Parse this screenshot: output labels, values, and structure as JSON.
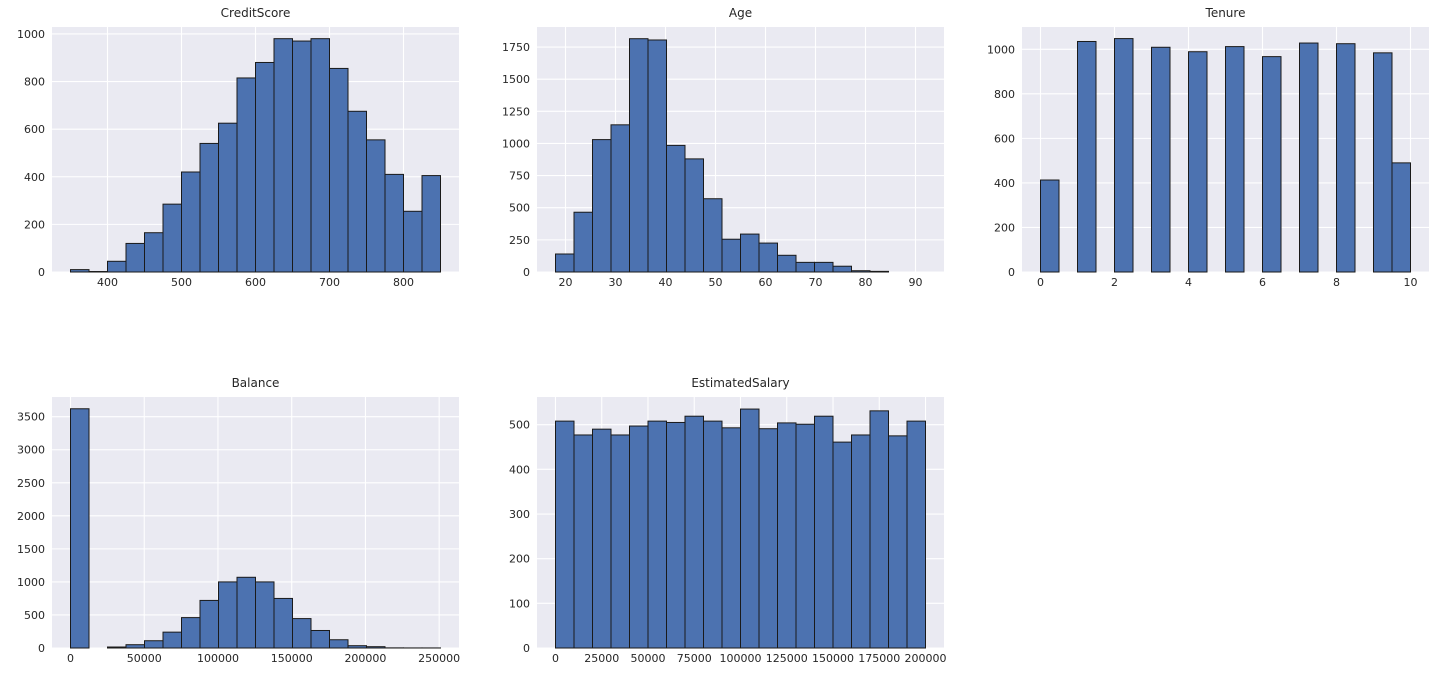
{
  "figure": {
    "background": "#ffffff",
    "axes_background": "#eaeaf2",
    "grid_color": "#ffffff",
    "bar_fill": "#4c72b0",
    "bar_edge": "#1a1a1a",
    "text_color": "#262626"
  },
  "chart_data": [
    {
      "type": "bar",
      "chart_kind": "histogram",
      "title": "CreditScore",
      "xlabel": "",
      "ylabel": "",
      "bin_start": 350,
      "bin_width": 25,
      "values": [
        10,
        2,
        45,
        120,
        165,
        285,
        420,
        540,
        625,
        815,
        880,
        980,
        970,
        980,
        855,
        675,
        555,
        410,
        255,
        405
      ],
      "xlim": [
        325,
        875
      ],
      "ylim": [
        0,
        1029
      ],
      "xticks": [
        400,
        500,
        600,
        700,
        800
      ],
      "yticks": [
        0,
        200,
        400,
        600,
        800,
        1000
      ],
      "grid": true
    },
    {
      "type": "bar",
      "chart_kind": "histogram",
      "title": "Age",
      "xlabel": "",
      "ylabel": "",
      "bin_start": 18,
      "bin_width": 3.7,
      "values": [
        140,
        465,
        1030,
        1145,
        1815,
        1805,
        985,
        880,
        570,
        255,
        295,
        225,
        130,
        75,
        75,
        45,
        10,
        5,
        0,
        0
      ],
      "xlim": [
        14.3,
        95.7
      ],
      "ylim": [
        0,
        1906
      ],
      "xticks": [
        20,
        30,
        40,
        50,
        60,
        70,
        80,
        90
      ],
      "yticks": [
        0,
        250,
        500,
        750,
        1000,
        1250,
        1500,
        1750
      ],
      "grid": true
    },
    {
      "type": "bar",
      "chart_kind": "histogram",
      "title": "Tenure",
      "xlabel": "",
      "ylabel": "",
      "bin_start": 0,
      "bin_width": 0.5,
      "values": [
        413,
        0,
        1035,
        0,
        1048,
        0,
        1009,
        0,
        989,
        0,
        1012,
        0,
        967,
        0,
        1028,
        0,
        1025,
        0,
        984,
        490
      ],
      "xlim": [
        -0.5,
        10.5
      ],
      "ylim": [
        0,
        1100
      ],
      "xticks": [
        0,
        2,
        4,
        6,
        8,
        10
      ],
      "yticks": [
        0,
        200,
        400,
        600,
        800,
        1000
      ],
      "grid": true
    },
    {
      "type": "bar",
      "chart_kind": "histogram",
      "title": "Balance",
      "xlabel": "",
      "ylabel": "",
      "bin_start": 0,
      "bin_width": 12545,
      "values": [
        3620,
        0,
        15,
        50,
        110,
        240,
        460,
        720,
        1000,
        1070,
        1000,
        750,
        445,
        265,
        125,
        35,
        20,
        2,
        1,
        1
      ],
      "xlim": [
        -12545,
        263443
      ],
      "ylim": [
        0,
        3798
      ],
      "xticks": [
        0,
        50000,
        100000,
        150000,
        200000,
        250000
      ],
      "yticks": [
        0,
        500,
        1000,
        1500,
        2000,
        2500,
        3000,
        3500
      ],
      "grid": true
    },
    {
      "type": "bar",
      "chart_kind": "histogram",
      "title": "EstimatedSalary",
      "xlabel": "",
      "ylabel": "",
      "bin_start": 12,
      "bin_width": 9999,
      "values": [
        508,
        477,
        490,
        477,
        497,
        508,
        505,
        519,
        508,
        493,
        535,
        491,
        504,
        501,
        519,
        461,
        477,
        531,
        475,
        508
      ],
      "xlim": [
        -9987,
        209991
      ],
      "ylim": [
        0,
        562
      ],
      "xticks": [
        0,
        25000,
        50000,
        75000,
        100000,
        125000,
        150000,
        175000,
        200000
      ],
      "yticks": [
        0,
        100,
        200,
        300,
        400,
        500
      ],
      "grid": true
    }
  ]
}
